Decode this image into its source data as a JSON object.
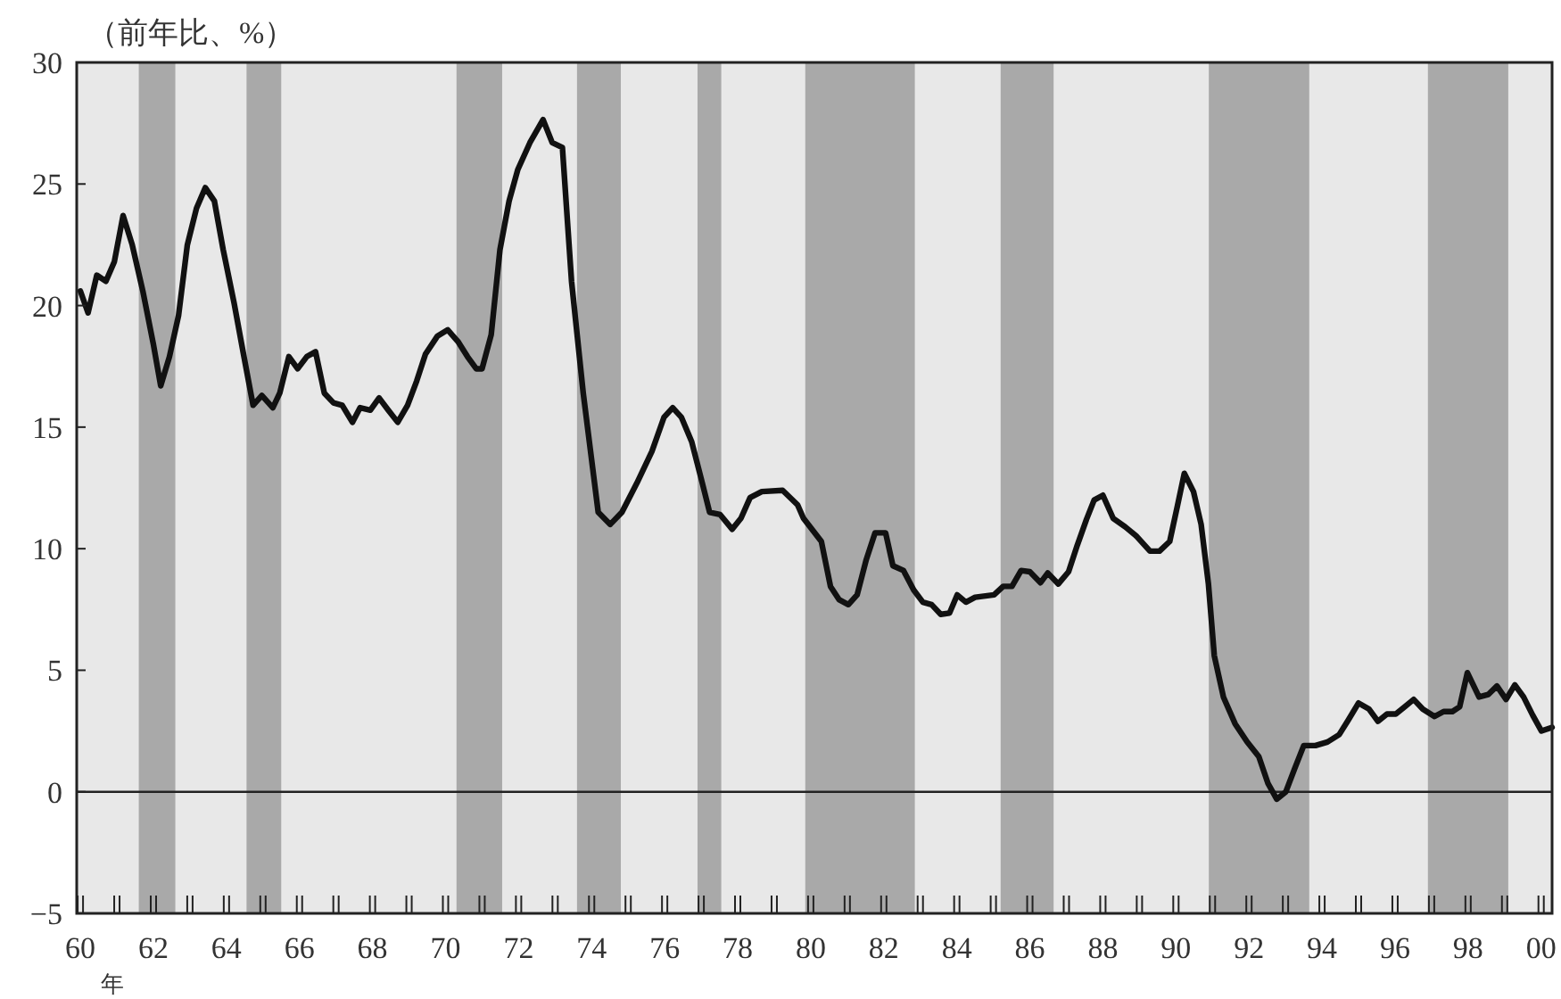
{
  "chart_data": {
    "type": "line",
    "ylabel": "（前年比、%）",
    "xlabel": "年",
    "x": [
      1960.0,
      1960.21,
      1960.45,
      1960.7,
      1960.93,
      1961.17,
      1961.42,
      1961.71,
      1962.0,
      1962.2,
      1962.44,
      1962.69,
      1962.93,
      1963.18,
      1963.42,
      1963.67,
      1963.91,
      1964.21,
      1964.48,
      1964.73,
      1964.97,
      1965.27,
      1965.46,
      1965.71,
      1965.95,
      1966.2,
      1966.44,
      1966.68,
      1966.93,
      1967.17,
      1967.45,
      1967.66,
      1967.94,
      1968.18,
      1968.43,
      1968.69,
      1968.96,
      1969.21,
      1969.45,
      1969.78,
      1970.06,
      1970.35,
      1970.6,
      1970.84,
      1971.0,
      1971.25,
      1971.49,
      1971.74,
      1971.98,
      1972.31,
      1972.67,
      1972.92,
      1973.2,
      1973.45,
      1973.77,
      1974.18,
      1974.51,
      1974.83,
      1975.24,
      1975.65,
      1975.98,
      1976.22,
      1976.46,
      1976.74,
      1977.03,
      1977.23,
      1977.52,
      1977.85,
      1978.09,
      1978.34,
      1978.66,
      1979.23,
      1979.64,
      1979.8,
      1980.29,
      1980.54,
      1980.78,
      1981.03,
      1981.27,
      1981.52,
      1981.76,
      1982.05,
      1982.25,
      1982.54,
      1982.82,
      1983.07,
      1983.31,
      1983.56,
      1983.8,
      1984.01,
      1984.25,
      1984.5,
      1985.02,
      1985.27,
      1985.51,
      1985.76,
      1986.0,
      1986.29,
      1986.49,
      1986.78,
      1987.06,
      1987.3,
      1987.55,
      1987.76,
      1988.0,
      1988.28,
      1988.61,
      1988.93,
      1989.29,
      1989.55,
      1989.83,
      1990.04,
      1990.23,
      1990.48,
      1990.69,
      1990.89,
      1991.05,
      1991.3,
      1991.62,
      1991.95,
      1992.27,
      1992.52,
      1992.76,
      1993.01,
      1993.25,
      1993.5,
      1993.82,
      1994.15,
      1994.47,
      1994.72,
      1995.0,
      1995.29,
      1995.53,
      1995.78,
      1996.02,
      1996.27,
      1996.51,
      1996.76,
      1997.08,
      1997.33,
      1997.57,
      1997.77,
      1997.98,
      1998.3,
      1998.55,
      1998.79,
      1999.04,
      1999.28,
      1999.52,
      1999.77,
      2000.01,
      2000.3
    ],
    "series": [
      {
        "color": "#111111",
        "values": [
          20.6,
          19.7,
          21.25,
          21.0,
          21.8,
          23.7,
          22.5,
          20.6,
          18.4,
          16.7,
          17.9,
          19.6,
          22.5,
          24.0,
          24.85,
          24.3,
          22.3,
          20.1,
          17.9,
          15.9,
          16.3,
          15.8,
          16.4,
          17.9,
          17.4,
          17.9,
          18.1,
          16.4,
          16.0,
          15.9,
          15.2,
          15.8,
          15.7,
          16.2,
          15.7,
          15.2,
          15.9,
          16.9,
          18.0,
          18.75,
          19.0,
          18.5,
          17.9,
          17.4,
          17.4,
          18.8,
          22.3,
          24.3,
          25.6,
          26.7,
          27.65,
          26.7,
          26.5,
          21.0,
          16.4,
          11.5,
          11.0,
          11.5,
          12.7,
          14.0,
          15.4,
          15.8,
          15.4,
          14.4,
          12.7,
          11.5,
          11.4,
          10.8,
          11.25,
          12.1,
          12.35,
          12.4,
          11.8,
          11.25,
          10.3,
          8.45,
          7.9,
          7.7,
          8.1,
          9.55,
          10.65,
          10.65,
          9.3,
          9.1,
          8.3,
          7.8,
          7.7,
          7.3,
          7.35,
          8.1,
          7.8,
          8.0,
          8.1,
          8.45,
          8.45,
          9.1,
          9.05,
          8.6,
          9.0,
          8.55,
          9.05,
          10.15,
          11.2,
          12.0,
          12.2,
          11.25,
          10.9,
          10.5,
          9.9,
          9.9,
          10.3,
          11.75,
          13.1,
          12.35,
          11.0,
          8.55,
          5.6,
          3.9,
          2.8,
          2.05,
          1.45,
          0.35,
          -0.3,
          0.0,
          0.95,
          1.9,
          1.9,
          2.05,
          2.35,
          2.95,
          3.65,
          3.4,
          2.9,
          3.2,
          3.2,
          3.5,
          3.8,
          3.4,
          3.1,
          3.3,
          3.3,
          3.5,
          4.9,
          3.9,
          4.0,
          4.35,
          3.8,
          4.4,
          3.9,
          3.15,
          2.5,
          2.65
        ]
      }
    ],
    "xlim": [
      1959.9,
      2000.3
    ],
    "ylim": [
      -5,
      30
    ],
    "xticks": [
      {
        "value": 1960,
        "label": "60"
      },
      {
        "value": 1961,
        "label": null
      },
      {
        "value": 1962,
        "label": "62"
      },
      {
        "value": 1963,
        "label": null
      },
      {
        "value": 1964,
        "label": "64"
      },
      {
        "value": 1965,
        "label": null
      },
      {
        "value": 1966,
        "label": "66"
      },
      {
        "value": 1967,
        "label": null
      },
      {
        "value": 1968,
        "label": "68"
      },
      {
        "value": 1969,
        "label": null
      },
      {
        "value": 1970,
        "label": "70"
      },
      {
        "value": 1971,
        "label": null
      },
      {
        "value": 1972,
        "label": "72"
      },
      {
        "value": 1973,
        "label": null
      },
      {
        "value": 1974,
        "label": "74"
      },
      {
        "value": 1975,
        "label": null
      },
      {
        "value": 1976,
        "label": "76"
      },
      {
        "value": 1977,
        "label": null
      },
      {
        "value": 1978,
        "label": "78"
      },
      {
        "value": 1979,
        "label": null
      },
      {
        "value": 1980,
        "label": "80"
      },
      {
        "value": 1981,
        "label": null
      },
      {
        "value": 1982,
        "label": "82"
      },
      {
        "value": 1983,
        "label": null
      },
      {
        "value": 1984,
        "label": "84"
      },
      {
        "value": 1985,
        "label": null
      },
      {
        "value": 1986,
        "label": "86"
      },
      {
        "value": 1987,
        "label": null
      },
      {
        "value": 1988,
        "label": "88"
      },
      {
        "value": 1989,
        "label": null
      },
      {
        "value": 1990,
        "label": "90"
      },
      {
        "value": 1991,
        "label": null
      },
      {
        "value": 1992,
        "label": "92"
      },
      {
        "value": 1993,
        "label": null
      },
      {
        "value": 1994,
        "label": "94"
      },
      {
        "value": 1995,
        "label": null
      },
      {
        "value": 1996,
        "label": "96"
      },
      {
        "value": 1997,
        "label": null
      },
      {
        "value": 1998,
        "label": "98"
      },
      {
        "value": 1999,
        "label": null
      },
      {
        "value": 2000,
        "label": "00"
      }
    ],
    "yticks": [
      {
        "value": -5,
        "label": "−5"
      },
      0,
      5,
      10,
      15,
      20,
      25,
      30
    ],
    "ref_lines": [
      {
        "axis": "y",
        "value": 0,
        "color": "#222222"
      }
    ],
    "bands": [
      {
        "axis": "x",
        "from": 1961.6,
        "to": 1962.6,
        "color": "#a9a9a9"
      },
      {
        "axis": "x",
        "from": 1964.55,
        "to": 1965.5,
        "color": "#a9a9a9"
      },
      {
        "axis": "x",
        "from": 1970.3,
        "to": 1971.55,
        "color": "#a9a9a9"
      },
      {
        "axis": "x",
        "from": 1973.6,
        "to": 1974.8,
        "color": "#a9a9a9"
      },
      {
        "axis": "x",
        "from": 1976.9,
        "to": 1977.55,
        "color": "#a9a9a9"
      },
      {
        "axis": "x",
        "from": 1979.85,
        "to": 1982.85,
        "color": "#a9a9a9"
      },
      {
        "axis": "x",
        "from": 1985.2,
        "to": 1986.65,
        "color": "#a9a9a9"
      },
      {
        "axis": "x",
        "from": 1990.9,
        "to": 1993.65,
        "color": "#a9a9a9"
      },
      {
        "axis": "x",
        "from": 1996.9,
        "to": 1999.1,
        "color": "#a9a9a9"
      }
    ],
    "grid": false,
    "marker": "none",
    "line_style": "solid"
  }
}
